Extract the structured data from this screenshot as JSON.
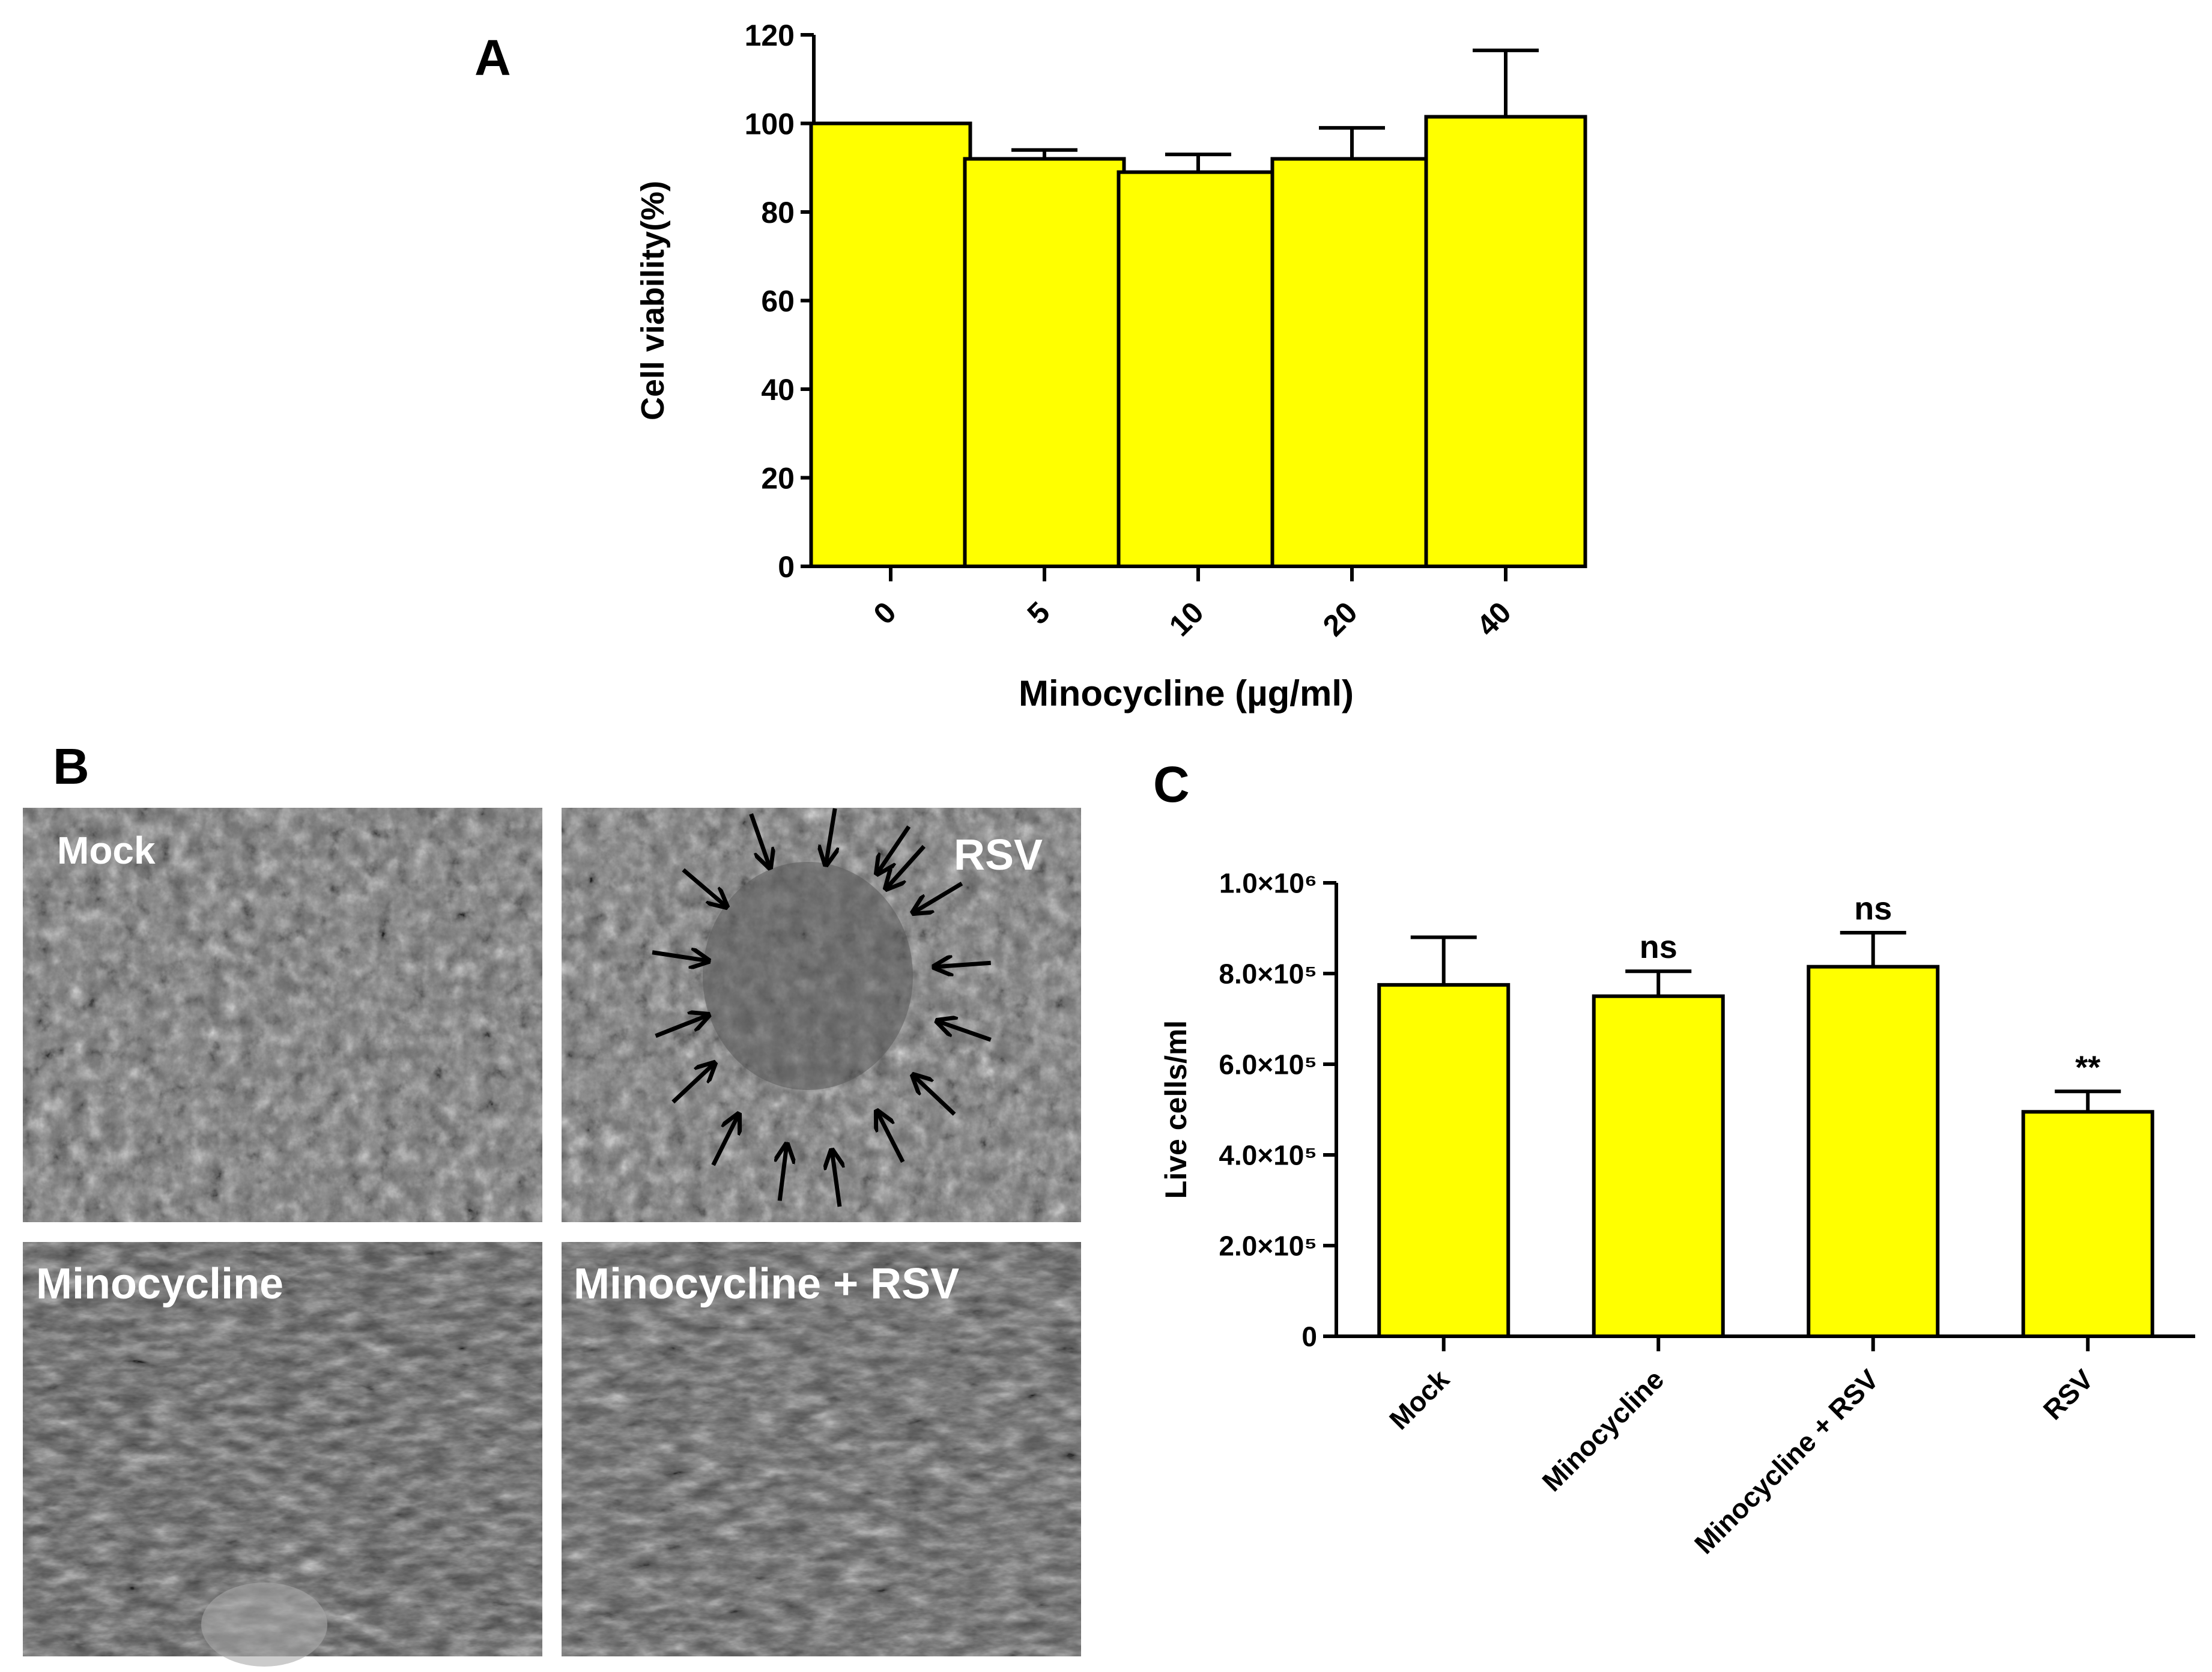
{
  "panels": {
    "a": "A",
    "b": "B",
    "c": "C"
  },
  "micrographs": {
    "mock": "Mock",
    "rsv": "RSV",
    "minocycline": "Minocycline",
    "minocycline_rsv": "Minocycline + RSV"
  },
  "colors": {
    "bar_fill": "#FFFF00",
    "photo_dark": "#4a4a4a",
    "photo_mid": "#6b6b6b",
    "photo_light": "#8e8e8e"
  },
  "chart_data": [
    {
      "id": "A",
      "type": "bar",
      "categories": [
        "0",
        "5",
        "10",
        "20",
        "40"
      ],
      "values": [
        100,
        92,
        89,
        92,
        101.5
      ],
      "errors": [
        0,
        2,
        4,
        7,
        15
      ],
      "xlabel": "Minocycline (µg/ml)",
      "ylabel": "Cell viability(%)",
      "ylim": [
        0,
        120
      ],
      "yticks": [
        {
          "value": 0,
          "label": "0"
        },
        {
          "value": 20,
          "label": "20"
        },
        {
          "value": 40,
          "label": "40"
        },
        {
          "value": 60,
          "label": "60"
        },
        {
          "value": 80,
          "label": "80"
        },
        {
          "value": 100,
          "label": "100"
        },
        {
          "value": 120,
          "label": "120"
        }
      ],
      "annotations": [
        "",
        "",
        "",
        "",
        ""
      ],
      "grid": false
    },
    {
      "id": "C",
      "type": "bar",
      "categories": [
        "Mock",
        "Minocycline",
        "Minocycline + RSV",
        "RSV"
      ],
      "values": [
        775000,
        750000,
        815000,
        495000
      ],
      "errors": [
        105000,
        55000,
        75000,
        45000
      ],
      "xlabel": "",
      "ylabel": "Live cells/ml",
      "ylim": [
        0,
        1000000
      ],
      "yticks": [
        {
          "value": 0,
          "label": "0"
        },
        {
          "value": 200000,
          "label": "2.0×10⁵"
        },
        {
          "value": 400000,
          "label": "4.0×10⁵"
        },
        {
          "value": 600000,
          "label": "6.0×10⁵"
        },
        {
          "value": 800000,
          "label": "8.0×10⁵"
        },
        {
          "value": 1000000,
          "label": "1.0×10⁶"
        }
      ],
      "annotations": [
        "",
        "ns",
        "ns",
        "**"
      ],
      "grid": false
    }
  ]
}
